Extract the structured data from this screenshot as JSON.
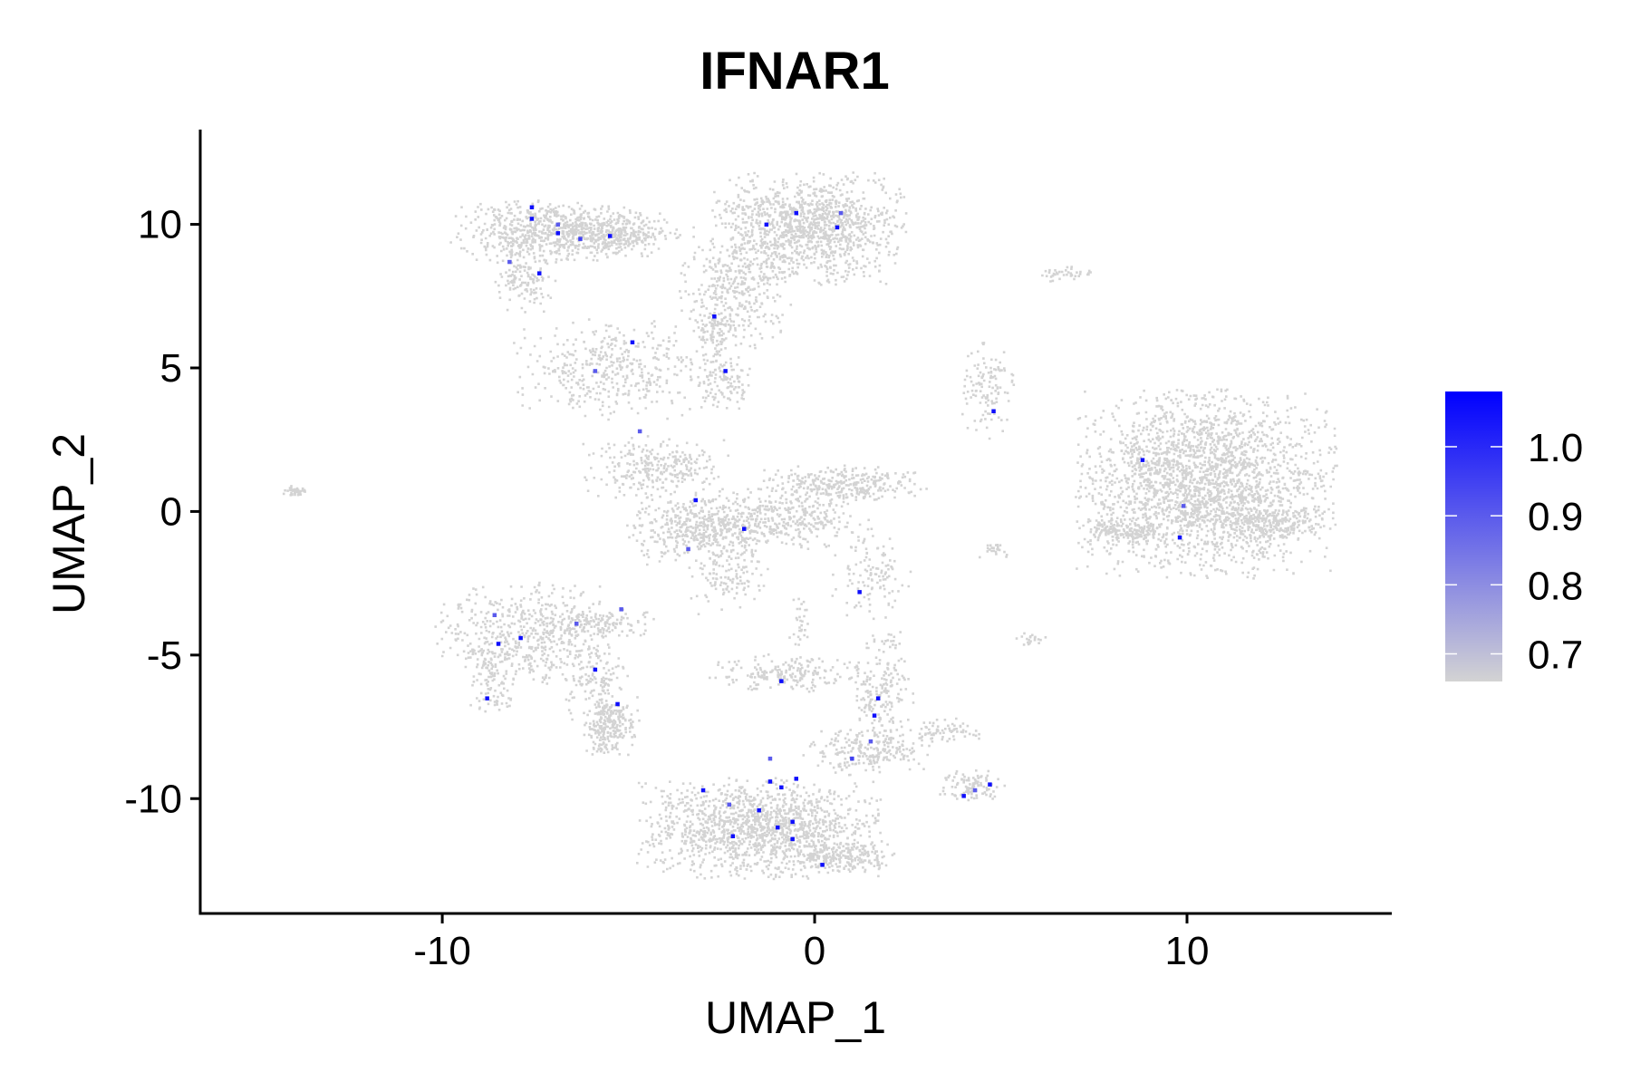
{
  "chart_data": {
    "type": "scatter",
    "title": "IFNAR1",
    "xlabel": "UMAP_1",
    "ylabel": "UMAP_2",
    "xlim": [
      -16.5,
      15.5
    ],
    "ylim": [
      -14,
      13.3
    ],
    "x_ticks": [
      -10,
      0,
      10
    ],
    "x_tick_labels": [
      "-10",
      "0",
      "10"
    ],
    "y_ticks": [
      -10,
      -5,
      0,
      5,
      10
    ],
    "y_tick_labels": [
      "-10",
      "-5",
      "0",
      "5",
      "10"
    ],
    "grid": false,
    "legend": {
      "placement": "right",
      "type": "colorbar",
      "min": 0.66,
      "max": 1.08,
      "ticks": [
        0.7,
        0.8,
        0.9,
        1.0
      ],
      "tick_labels": [
        "0.7",
        "0.8",
        "0.9",
        "1.0"
      ],
      "low_color": "#d3d3d3",
      "high_color": "#0000ff"
    },
    "background_point_color": "#d3d3d3",
    "clusters": [
      {
        "cx": -7.2,
        "cy": 9.8,
        "sx": 1.2,
        "sy": 0.5,
        "n": 650
      },
      {
        "cx": -5.4,
        "cy": 9.7,
        "sx": 0.8,
        "sy": 0.35,
        "n": 300
      },
      {
        "cx": -7.8,
        "cy": 8.3,
        "sx": 0.4,
        "sy": 0.6,
        "n": 150
      },
      {
        "cx": -0.2,
        "cy": 9.9,
        "sx": 1.2,
        "sy": 0.9,
        "n": 1200
      },
      {
        "cx": -2.2,
        "cy": 7.8,
        "sx": 0.7,
        "sy": 1.0,
        "n": 350
      },
      {
        "cx": -2.7,
        "cy": 6.3,
        "sx": 0.25,
        "sy": 0.5,
        "n": 80
      },
      {
        "cx": 6.7,
        "cy": 8.3,
        "sx": 0.35,
        "sy": 0.12,
        "n": 40
      },
      {
        "cx": -5.5,
        "cy": 5.0,
        "sx": 1.2,
        "sy": 0.8,
        "n": 400
      },
      {
        "cx": -2.5,
        "cy": 4.6,
        "sx": 0.4,
        "sy": 0.5,
        "n": 120
      },
      {
        "cx": 4.6,
        "cy": 4.3,
        "sx": 0.35,
        "sy": 0.8,
        "n": 120
      },
      {
        "cx": -4.3,
        "cy": 1.6,
        "sx": 0.9,
        "sy": 0.5,
        "n": 280
      },
      {
        "cx": 10.5,
        "cy": 1.0,
        "sx": 1.6,
        "sy": 1.5,
        "n": 2400
      },
      {
        "cx": 8.3,
        "cy": -0.7,
        "sx": 0.5,
        "sy": 0.2,
        "n": 150
      },
      {
        "cx": 12.2,
        "cy": -0.4,
        "sx": 0.7,
        "sy": 0.3,
        "n": 200
      },
      {
        "cx": -3.1,
        "cy": -0.5,
        "sx": 0.9,
        "sy": 0.6,
        "n": 450
      },
      {
        "cx": -1.0,
        "cy": -0.2,
        "sx": 1.0,
        "sy": 0.5,
        "n": 350
      },
      {
        "cx": 0.8,
        "cy": 1.0,
        "sx": 1.0,
        "sy": 0.3,
        "n": 300
      },
      {
        "cx": -2.3,
        "cy": -2.3,
        "sx": 0.5,
        "sy": 0.6,
        "n": 120
      },
      {
        "cx": 1.5,
        "cy": -2.0,
        "sx": 0.5,
        "sy": 0.8,
        "n": 120
      },
      {
        "cx": -14.0,
        "cy": 0.75,
        "sx": 0.15,
        "sy": 0.08,
        "n": 40
      },
      {
        "cx": 4.8,
        "cy": -1.3,
        "sx": 0.2,
        "sy": 0.12,
        "n": 25
      },
      {
        "cx": 5.8,
        "cy": -4.4,
        "sx": 0.2,
        "sy": 0.1,
        "n": 20
      },
      {
        "cx": -7.8,
        "cy": -4.2,
        "sx": 1.1,
        "sy": 0.8,
        "n": 500
      },
      {
        "cx": -6.0,
        "cy": -3.8,
        "sx": 0.8,
        "sy": 0.3,
        "n": 150
      },
      {
        "cx": -8.7,
        "cy": -5.8,
        "sx": 0.3,
        "sy": 0.6,
        "n": 100
      },
      {
        "cx": -5.5,
        "cy": -7.4,
        "sx": 0.35,
        "sy": 0.5,
        "n": 250
      },
      {
        "cx": -5.9,
        "cy": -5.8,
        "sx": 0.4,
        "sy": 0.7,
        "n": 120
      },
      {
        "cx": -0.7,
        "cy": -5.6,
        "sx": 1.0,
        "sy": 0.3,
        "n": 200
      },
      {
        "cx": 1.8,
        "cy": -6.3,
        "sx": 0.4,
        "sy": 1.0,
        "n": 200
      },
      {
        "cx": 1.4,
        "cy": -8.3,
        "sx": 0.8,
        "sy": 0.4,
        "n": 220
      },
      {
        "cx": 3.6,
        "cy": -7.6,
        "sx": 0.4,
        "sy": 0.2,
        "n": 60
      },
      {
        "cx": 4.2,
        "cy": -9.5,
        "sx": 0.4,
        "sy": 0.25,
        "n": 100
      },
      {
        "cx": -1.5,
        "cy": -11.0,
        "sx": 1.5,
        "sy": 0.8,
        "n": 1400
      },
      {
        "cx": 0.8,
        "cy": -12.0,
        "sx": 0.6,
        "sy": 0.25,
        "n": 200
      },
      {
        "cx": -0.4,
        "cy": -3.8,
        "sx": 0.15,
        "sy": 0.5,
        "n": 30
      }
    ],
    "highlighted_points": [
      {
        "x": -7.6,
        "y": 10.6,
        "value": 1.05
      },
      {
        "x": -7.6,
        "y": 10.2,
        "value": 1.05
      },
      {
        "x": -6.9,
        "y": 9.7,
        "value": 1.05
      },
      {
        "x": -6.3,
        "y": 9.5,
        "value": 0.95
      },
      {
        "x": -5.5,
        "y": 9.6,
        "value": 1.05
      },
      {
        "x": -7.4,
        "y": 8.3,
        "value": 1.05
      },
      {
        "x": -8.2,
        "y": 8.7,
        "value": 0.9
      },
      {
        "x": -6.9,
        "y": 10.0,
        "value": 0.9
      },
      {
        "x": -1.3,
        "y": 10.0,
        "value": 1.05
      },
      {
        "x": -0.5,
        "y": 10.4,
        "value": 1.05
      },
      {
        "x": 0.6,
        "y": 9.9,
        "value": 1.05
      },
      {
        "x": 0.7,
        "y": 10.4,
        "value": 0.9
      },
      {
        "x": -2.7,
        "y": 6.8,
        "value": 1.05
      },
      {
        "x": -2.4,
        "y": 4.9,
        "value": 1.05
      },
      {
        "x": -4.9,
        "y": 5.9,
        "value": 1.05
      },
      {
        "x": -5.9,
        "y": 4.9,
        "value": 0.9
      },
      {
        "x": -4.7,
        "y": 2.8,
        "value": 0.9
      },
      {
        "x": 4.8,
        "y": 3.5,
        "value": 1.05
      },
      {
        "x": 8.8,
        "y": 1.8,
        "value": 1.05
      },
      {
        "x": 9.8,
        "y": -0.9,
        "value": 1.05
      },
      {
        "x": 9.9,
        "y": 0.2,
        "value": 0.9
      },
      {
        "x": -3.2,
        "y": 0.4,
        "value": 1.05
      },
      {
        "x": -3.4,
        "y": -1.3,
        "value": 0.9
      },
      {
        "x": -1.9,
        "y": -0.6,
        "value": 1.05
      },
      {
        "x": 1.2,
        "y": -2.8,
        "value": 1.05
      },
      {
        "x": -8.8,
        "y": -6.5,
        "value": 1.05
      },
      {
        "x": -8.5,
        "y": -4.6,
        "value": 1.05
      },
      {
        "x": -7.9,
        "y": -4.4,
        "value": 1.05
      },
      {
        "x": -5.9,
        "y": -5.5,
        "value": 1.05
      },
      {
        "x": -5.3,
        "y": -6.7,
        "value": 1.05
      },
      {
        "x": -6.4,
        "y": -3.9,
        "value": 0.9
      },
      {
        "x": -8.6,
        "y": -3.6,
        "value": 0.9
      },
      {
        "x": -5.2,
        "y": -3.4,
        "value": 0.9
      },
      {
        "x": -0.9,
        "y": -5.9,
        "value": 1.05
      },
      {
        "x": 1.7,
        "y": -6.5,
        "value": 1.05
      },
      {
        "x": 1.6,
        "y": -7.1,
        "value": 1.05
      },
      {
        "x": 1.0,
        "y": -8.6,
        "value": 0.95
      },
      {
        "x": 1.5,
        "y": -8.0,
        "value": 0.9
      },
      {
        "x": 4.0,
        "y": -9.9,
        "value": 1.05
      },
      {
        "x": 4.7,
        "y": -9.5,
        "value": 1.05
      },
      {
        "x": 4.3,
        "y": -9.7,
        "value": 0.9
      },
      {
        "x": -3.0,
        "y": -9.7,
        "value": 1.05
      },
      {
        "x": -1.2,
        "y": -9.4,
        "value": 1.05
      },
      {
        "x": -0.5,
        "y": -9.3,
        "value": 1.05
      },
      {
        "x": -0.9,
        "y": -9.6,
        "value": 1.05
      },
      {
        "x": -1.5,
        "y": -10.4,
        "value": 1.05
      },
      {
        "x": -0.6,
        "y": -10.8,
        "value": 1.05
      },
      {
        "x": -1.0,
        "y": -11.0,
        "value": 1.05
      },
      {
        "x": -2.2,
        "y": -11.3,
        "value": 1.05
      },
      {
        "x": -0.6,
        "y": -11.4,
        "value": 1.05
      },
      {
        "x": 0.2,
        "y": -12.3,
        "value": 1.05
      },
      {
        "x": -1.2,
        "y": -8.6,
        "value": 0.9
      },
      {
        "x": -2.3,
        "y": -10.2,
        "value": 0.9
      }
    ]
  }
}
